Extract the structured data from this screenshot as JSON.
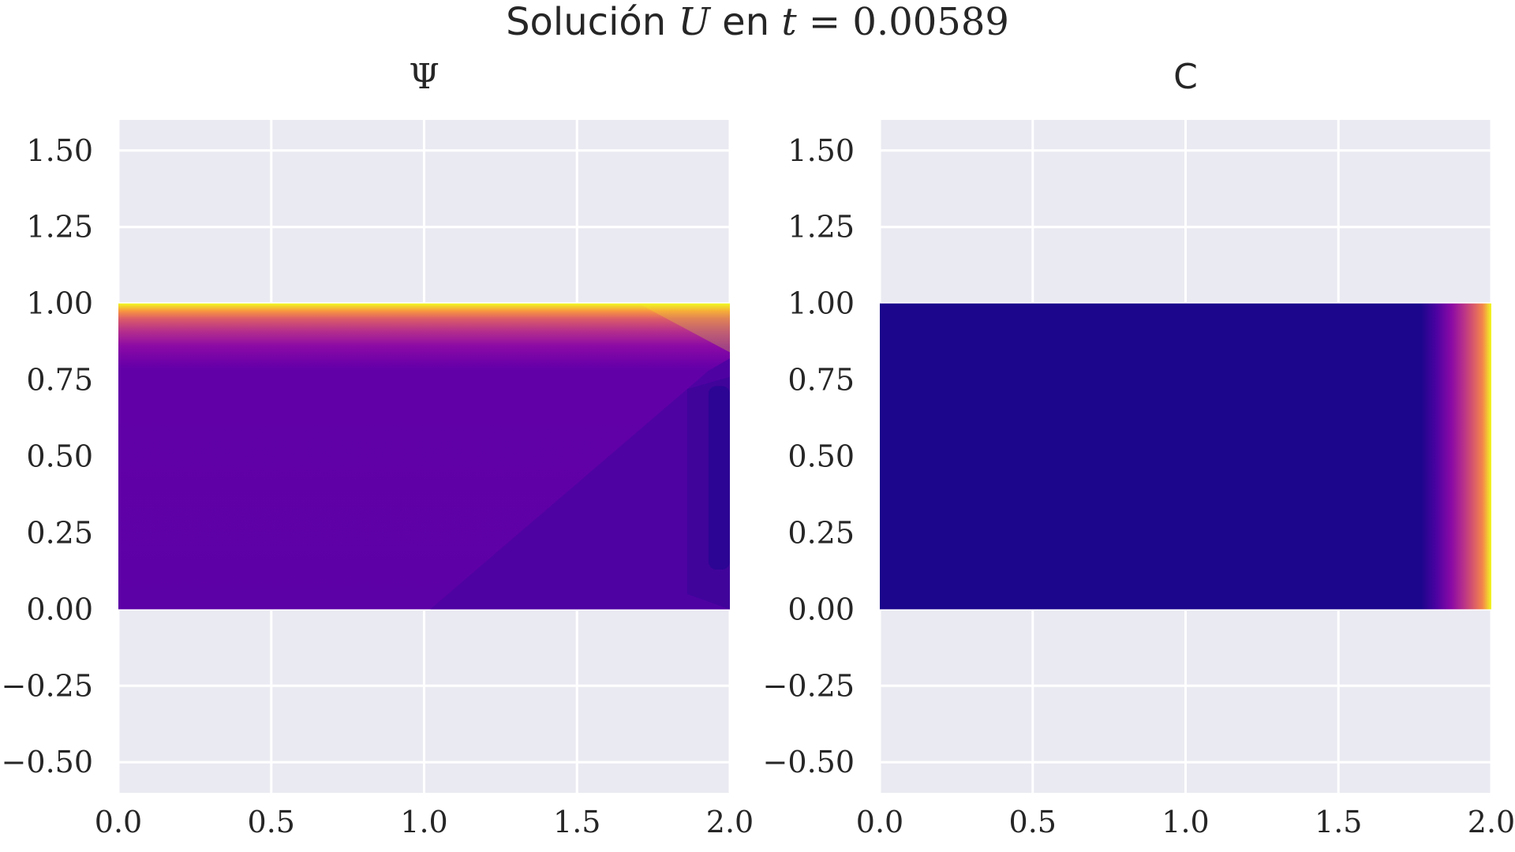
{
  "figure": {
    "suptitle_prefix": "Solución ",
    "suptitle_var": "U",
    "suptitle_mid": " en ",
    "suptitle_t": "t",
    "suptitle_eq": " = ",
    "suptitle_value": "0.00589"
  },
  "chart_data": [
    {
      "type": "heatmap",
      "title": "Ψ",
      "xlabel": "",
      "ylabel": "",
      "xlim": [
        0.0,
        2.0
      ],
      "ylim": [
        -0.6,
        1.6
      ],
      "xticks": [
        0.0,
        0.5,
        1.0,
        1.5,
        2.0
      ],
      "xtick_labels": [
        "0.0",
        "0.5",
        "1.0",
        "1.5",
        "2.0"
      ],
      "yticks": [
        -0.5,
        -0.25,
        0.0,
        0.25,
        0.5,
        0.75,
        1.0,
        1.25,
        1.5
      ],
      "ytick_labels": [
        "−0.50",
        "−0.25",
        "0.00",
        "0.25",
        "0.50",
        "0.75",
        "1.00",
        "1.25",
        "1.50"
      ],
      "grid": true,
      "colormap": "plasma",
      "domain": {
        "x": [
          0.0,
          2.0
        ],
        "y": [
          0.0,
          1.0
        ]
      },
      "field_description": "flat low values, rising to maximum at the top boundary y=1"
    },
    {
      "type": "heatmap",
      "title": "C",
      "xlabel": "",
      "ylabel": "",
      "xlim": [
        0.0,
        2.0
      ],
      "ylim": [
        -0.6,
        1.6
      ],
      "xticks": [
        0.0,
        0.5,
        1.0,
        1.5,
        2.0
      ],
      "xtick_labels": [
        "0.0",
        "0.5",
        "1.0",
        "1.5",
        "2.0"
      ],
      "yticks": [
        -0.5,
        -0.25,
        0.0,
        0.25,
        0.5,
        0.75,
        1.0,
        1.25,
        1.5
      ],
      "ytick_labels": [
        "−0.50",
        "−0.25",
        "0.00",
        "0.25",
        "0.50",
        "0.75",
        "1.00",
        "1.25",
        "1.50"
      ],
      "grid": true,
      "colormap": "plasma",
      "domain": {
        "x": [
          0.0,
          2.0
        ],
        "y": [
          0.0,
          1.0
        ]
      },
      "field_description": "near-zero everywhere, rising to maximum at the right boundary x=2"
    }
  ],
  "colors": {
    "axes_background": "#eaeaf2",
    "grid": "#ffffff",
    "text": "#262626",
    "plasma_low": "#0d0887",
    "plasma_mid_low": "#5c01a6",
    "plasma_mid": "#9c179e",
    "plasma_mid_high": "#cc4778",
    "plasma_high": "#ed7953",
    "plasma_top": "#f0f921"
  }
}
